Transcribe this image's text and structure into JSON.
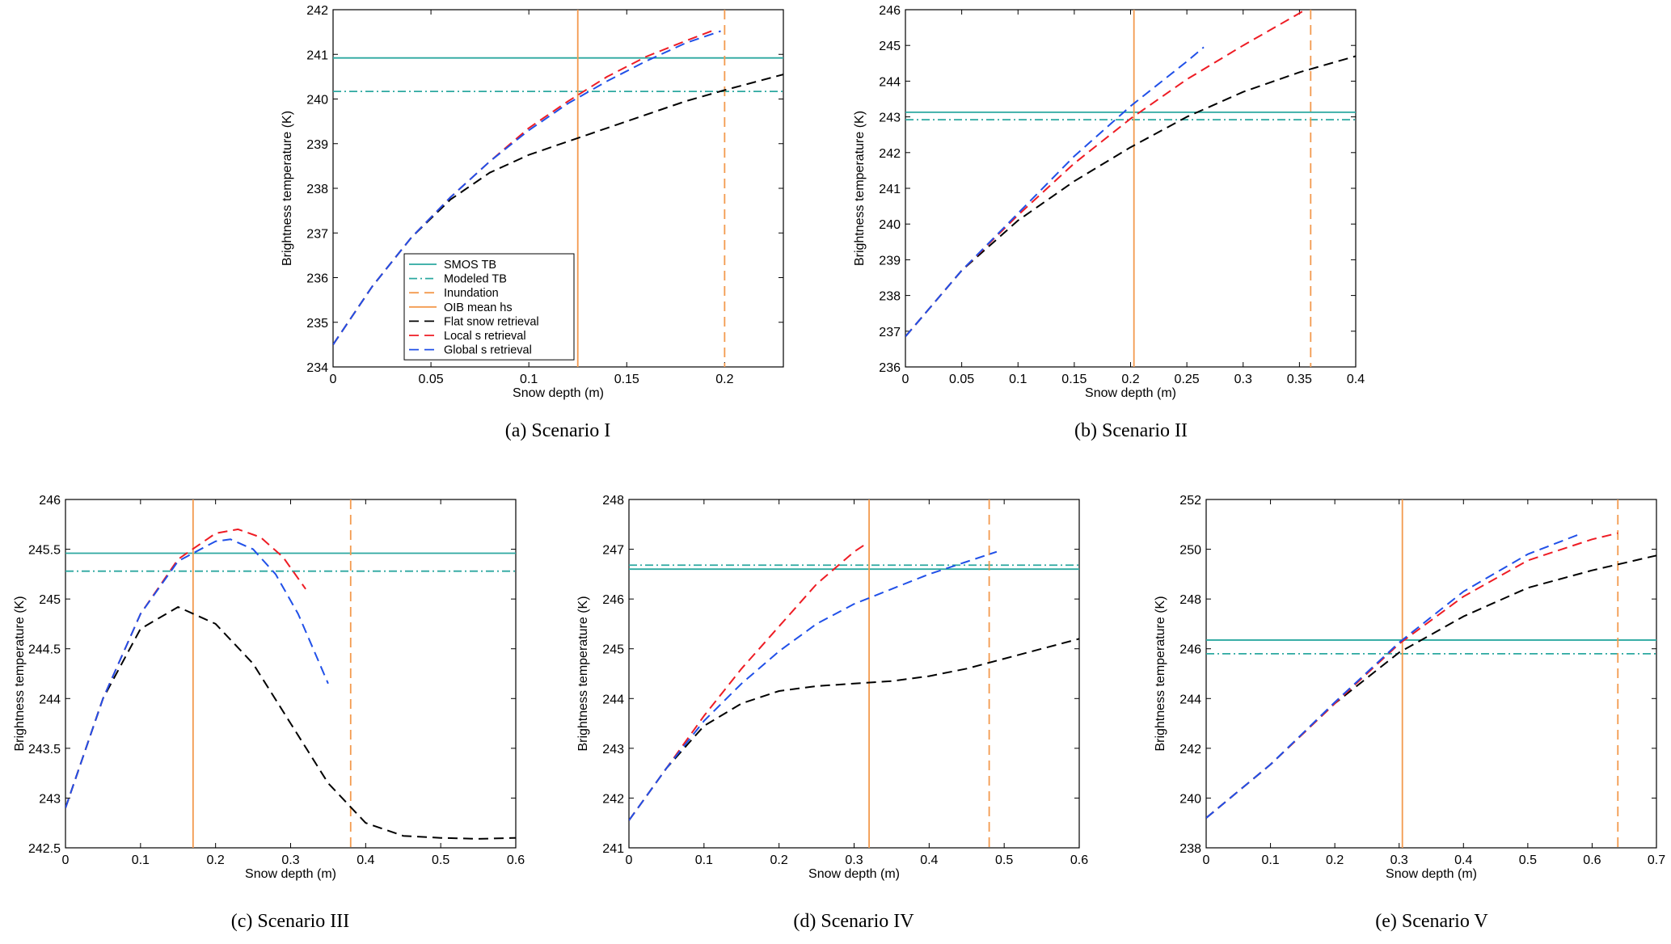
{
  "chart_data": [
    {
      "type": "line",
      "caption": "(a) Scenario I",
      "xlabel": "Snow depth (m)",
      "ylabel": "Brightness temperature (K)",
      "xlim": [
        0,
        0.23
      ],
      "ylim": [
        234,
        242
      ],
      "xticks": [
        0,
        0.05,
        0.1,
        0.15,
        0.2
      ],
      "xtick_labels": [
        "0",
        "0.05",
        "0.1",
        "0.15",
        "0.2"
      ],
      "yticks": [
        234,
        235,
        236,
        237,
        238,
        239,
        240,
        241,
        242
      ],
      "ytick_labels": [
        "234",
        "235",
        "236",
        "237",
        "238",
        "239",
        "240",
        "241",
        "242"
      ],
      "legend": {
        "placement": "lower-left",
        "entries": [
          "SMOS TB",
          "Modeled TB",
          "Inundation",
          "OIB mean hs",
          " Flat snow retrieval",
          "Local s retrieval",
          "Global s retrieval"
        ]
      },
      "hlines": [
        {
          "name": "SMOS TB",
          "y": 240.92
        },
        {
          "name": "Modeled TB",
          "y": 240.17
        }
      ],
      "vlines": [
        {
          "name": "Inundation",
          "x": 0.2
        },
        {
          "name": "OIB mean hs",
          "x": 0.125
        }
      ],
      "series": [
        {
          "name": "Flat snow retrieval",
          "x": [
            0,
            0.02,
            0.04,
            0.06,
            0.08,
            0.1,
            0.12,
            0.14,
            0.16,
            0.18,
            0.2,
            0.23
          ],
          "y": [
            234.5,
            235.8,
            236.9,
            237.75,
            238.35,
            238.75,
            239.05,
            239.35,
            239.65,
            239.95,
            240.2,
            240.55
          ]
        },
        {
          "name": "Local s retrieval",
          "x": [
            0,
            0.02,
            0.04,
            0.06,
            0.08,
            0.1,
            0.12,
            0.14,
            0.16,
            0.18,
            0.195
          ],
          "y": [
            234.5,
            235.8,
            236.9,
            237.8,
            238.6,
            239.35,
            239.95,
            240.5,
            240.95,
            241.3,
            241.55
          ]
        },
        {
          "name": "Global s retrieval",
          "x": [
            0,
            0.02,
            0.04,
            0.06,
            0.08,
            0.1,
            0.12,
            0.14,
            0.16,
            0.18,
            0.198
          ],
          "y": [
            234.5,
            235.8,
            236.9,
            237.8,
            238.6,
            239.3,
            239.9,
            240.4,
            240.85,
            241.25,
            241.52
          ]
        }
      ]
    },
    {
      "type": "line",
      "caption": "(b) Scenario II",
      "xlabel": "Snow depth (m)",
      "ylabel": "Brightness temperature (K)",
      "xlim": [
        0,
        0.4
      ],
      "ylim": [
        236,
        246
      ],
      "xticks": [
        0,
        0.05,
        0.1,
        0.15,
        0.2,
        0.25,
        0.3,
        0.35,
        0.4
      ],
      "xtick_labels": [
        "0",
        "0.05",
        "0.1",
        "0.15",
        "0.2",
        "0.25",
        "0.3",
        "0.35",
        "0.4"
      ],
      "yticks": [
        236,
        237,
        238,
        239,
        240,
        241,
        242,
        243,
        244,
        245,
        246
      ],
      "ytick_labels": [
        "236",
        "237",
        "238",
        "239",
        "240",
        "241",
        "242",
        "243",
        "244",
        "245",
        "246"
      ],
      "hlines": [
        {
          "name": "SMOS TB",
          "y": 243.13
        },
        {
          "name": "Modeled TB",
          "y": 242.92
        }
      ],
      "vlines": [
        {
          "name": "Inundation",
          "x": 0.36
        },
        {
          "name": "OIB mean hs",
          "x": 0.203
        }
      ],
      "series": [
        {
          "name": "Flat snow retrieval",
          "x": [
            0,
            0.05,
            0.1,
            0.15,
            0.2,
            0.25,
            0.3,
            0.35,
            0.4
          ],
          "y": [
            236.85,
            238.7,
            240.1,
            241.2,
            242.15,
            243.0,
            243.7,
            244.25,
            244.7
          ]
        },
        {
          "name": "Local s retrieval",
          "x": [
            0,
            0.05,
            0.1,
            0.15,
            0.2,
            0.25,
            0.3,
            0.35,
            0.355
          ],
          "y": [
            236.85,
            238.7,
            240.25,
            241.7,
            242.95,
            244.05,
            245.0,
            245.9,
            246.0
          ]
        },
        {
          "name": "Global s retrieval",
          "x": [
            0,
            0.05,
            0.1,
            0.15,
            0.2,
            0.25,
            0.265
          ],
          "y": [
            236.85,
            238.7,
            240.3,
            241.9,
            243.3,
            244.55,
            244.95
          ]
        }
      ]
    },
    {
      "type": "line",
      "caption": "(c) Scenario III",
      "xlabel": "Snow depth (m)",
      "ylabel": "Brightness temperature (K)",
      "xlim": [
        0,
        0.6
      ],
      "ylim": [
        242.5,
        246
      ],
      "xticks": [
        0,
        0.1,
        0.2,
        0.3,
        0.4,
        0.5,
        0.6
      ],
      "xtick_labels": [
        "0",
        "0.1",
        "0.2",
        "0.3",
        "0.4",
        "0.5",
        "0.6"
      ],
      "yticks": [
        242.5,
        243,
        243.5,
        244,
        244.5,
        245,
        245.5,
        246
      ],
      "ytick_labels": [
        "242.5",
        "243",
        "243.5",
        "244",
        "244.5",
        "245",
        "245.5",
        "246"
      ],
      "hlines": [
        {
          "name": "SMOS TB",
          "y": 245.46
        },
        {
          "name": "Modeled TB",
          "y": 245.28
        }
      ],
      "vlines": [
        {
          "name": "Inundation",
          "x": 0.38
        },
        {
          "name": "OIB mean hs",
          "x": 0.17
        }
      ],
      "series": [
        {
          "name": "Flat snow retrieval",
          "x": [
            0,
            0.05,
            0.1,
            0.15,
            0.2,
            0.25,
            0.3,
            0.35,
            0.4,
            0.45,
            0.5,
            0.55,
            0.6
          ],
          "y": [
            242.9,
            244.0,
            244.7,
            244.92,
            244.75,
            244.35,
            243.75,
            243.15,
            242.75,
            242.62,
            242.6,
            242.59,
            242.6
          ]
        },
        {
          "name": "Local s retrieval",
          "x": [
            0,
            0.05,
            0.1,
            0.15,
            0.2,
            0.23,
            0.26,
            0.29,
            0.32
          ],
          "y": [
            242.9,
            244.0,
            244.85,
            245.4,
            245.66,
            245.7,
            245.62,
            245.42,
            245.1
          ]
        },
        {
          "name": "Global s retrieval",
          "x": [
            0,
            0.05,
            0.1,
            0.15,
            0.2,
            0.22,
            0.25,
            0.28,
            0.31,
            0.33,
            0.35
          ],
          "y": [
            242.9,
            244.0,
            244.85,
            245.38,
            245.58,
            245.6,
            245.5,
            245.25,
            244.85,
            244.5,
            244.15
          ]
        }
      ]
    },
    {
      "type": "line",
      "caption": "(d) Scenario IV",
      "xlabel": "Snow depth (m)",
      "ylabel": "Brightness temperature (K)",
      "xlim": [
        0,
        0.6
      ],
      "ylim": [
        241,
        248
      ],
      "xticks": [
        0,
        0.1,
        0.2,
        0.3,
        0.4,
        0.5,
        0.6
      ],
      "xtick_labels": [
        "0",
        "0.1",
        "0.2",
        "0.3",
        "0.4",
        "0.5",
        "0.6"
      ],
      "yticks": [
        241,
        242,
        243,
        244,
        245,
        246,
        247,
        248
      ],
      "ytick_labels": [
        "241",
        "242",
        "243",
        "244",
        "245",
        "246",
        "247",
        "248"
      ],
      "hlines": [
        {
          "name": "SMOS TB",
          "y": 246.6
        },
        {
          "name": "Modeled TB",
          "y": 246.68
        }
      ],
      "vlines": [
        {
          "name": "Inundation",
          "x": 0.48
        },
        {
          "name": "OIB mean hs",
          "x": 0.32
        }
      ],
      "series": [
        {
          "name": "Flat snow retrieval",
          "x": [
            0,
            0.05,
            0.1,
            0.15,
            0.2,
            0.25,
            0.3,
            0.35,
            0.4,
            0.45,
            0.5,
            0.55,
            0.6
          ],
          "y": [
            241.55,
            242.6,
            243.45,
            243.9,
            244.15,
            244.25,
            244.3,
            244.35,
            244.45,
            244.6,
            244.8,
            245.0,
            245.2
          ]
        },
        {
          "name": "Local s retrieval",
          "x": [
            0,
            0.05,
            0.1,
            0.15,
            0.2,
            0.25,
            0.3,
            0.315
          ],
          "y": [
            241.55,
            242.6,
            243.65,
            244.6,
            245.45,
            246.3,
            246.95,
            247.1
          ]
        },
        {
          "name": "Global s retrieval",
          "x": [
            0,
            0.05,
            0.1,
            0.15,
            0.2,
            0.25,
            0.3,
            0.35,
            0.4,
            0.45,
            0.49
          ],
          "y": [
            241.55,
            242.6,
            243.55,
            244.3,
            244.95,
            245.5,
            245.9,
            246.2,
            246.5,
            246.75,
            246.95
          ]
        }
      ]
    },
    {
      "type": "line",
      "caption": "(e) Scenario V",
      "xlabel": "Snow depth (m)",
      "ylabel": "Brightness temperature (K)",
      "xlim": [
        0,
        0.7
      ],
      "ylim": [
        238,
        252
      ],
      "xticks": [
        0,
        0.1,
        0.2,
        0.3,
        0.4,
        0.5,
        0.6,
        0.7
      ],
      "xtick_labels": [
        "0",
        "0.1",
        "0.2",
        "0.3",
        "0.4",
        "0.5",
        "0.6",
        "0.7"
      ],
      "yticks": [
        238,
        240,
        242,
        244,
        246,
        248,
        250,
        252
      ],
      "ytick_labels": [
        "238",
        "240",
        "242",
        "244",
        "246",
        "248",
        "250",
        "252"
      ],
      "hlines": [
        {
          "name": "SMOS TB",
          "y": 246.35
        },
        {
          "name": "Modeled TB",
          "y": 245.8
        }
      ],
      "vlines": [
        {
          "name": "Inundation",
          "x": 0.64
        },
        {
          "name": "OIB mean hs",
          "x": 0.305
        }
      ],
      "series": [
        {
          "name": "Flat snow retrieval",
          "x": [
            0,
            0.1,
            0.2,
            0.3,
            0.4,
            0.5,
            0.6,
            0.7
          ],
          "y": [
            239.2,
            241.35,
            243.8,
            245.85,
            247.3,
            248.45,
            249.15,
            249.75
          ]
        },
        {
          "name": "Local s retrieval",
          "x": [
            0,
            0.1,
            0.2,
            0.3,
            0.4,
            0.5,
            0.6,
            0.64
          ],
          "y": [
            239.2,
            241.35,
            243.8,
            246.2,
            248.1,
            249.55,
            250.4,
            250.65
          ]
        },
        {
          "name": "Global s retrieval",
          "x": [
            0,
            0.1,
            0.2,
            0.3,
            0.4,
            0.5,
            0.58
          ],
          "y": [
            239.2,
            241.35,
            243.85,
            246.25,
            248.3,
            249.8,
            250.6
          ]
        }
      ]
    }
  ]
}
